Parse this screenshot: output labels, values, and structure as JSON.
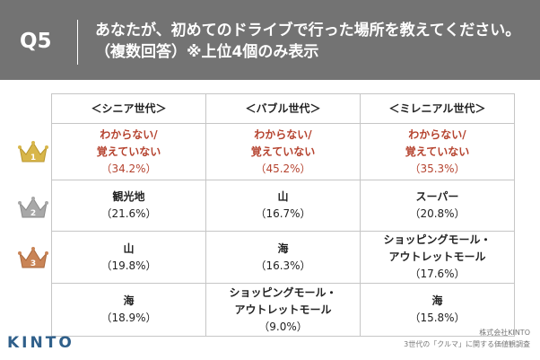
{
  "header": {
    "question_no": "Q5",
    "title_line1": "あなたが、初めてのドライブで行った場所を教えてください。",
    "title_line2": "（複数回答）※上位4個のみ表示"
  },
  "table": {
    "columns": [
      "＜シニア世代＞",
      "＜バブル世代＞",
      "＜ミレニアル世代＞"
    ],
    "rows": [
      {
        "rank": "1",
        "rank_icon": "gold-crown-icon",
        "cells": [
          {
            "name": "わからない/\n覚えていない",
            "pct": "（34.2%）"
          },
          {
            "name": "わからない/\n覚えていない",
            "pct": "（45.2%）"
          },
          {
            "name": "わからない/\n覚えていない",
            "pct": "（35.3%）"
          }
        ]
      },
      {
        "rank": "2",
        "rank_icon": "silver-crown-icon",
        "cells": [
          {
            "name": "観光地",
            "pct": "（21.6%）"
          },
          {
            "name": "山",
            "pct": "（16.7%）"
          },
          {
            "name": "スーパー",
            "pct": "（20.8%）"
          }
        ]
      },
      {
        "rank": "3",
        "rank_icon": "bronze-crown-icon",
        "cells": [
          {
            "name": "山",
            "pct": "（19.8%）"
          },
          {
            "name": "海",
            "pct": "（16.3%）"
          },
          {
            "name": "ショッピングモール・\nアウトレットモール",
            "pct": "（17.6%）"
          }
        ]
      },
      {
        "rank": "",
        "rank_icon": "",
        "cells": [
          {
            "name": "海",
            "pct": "（18.9%）"
          },
          {
            "name": "ショッピングモール・\nアウトレットモール",
            "pct": "（9.0%）"
          },
          {
            "name": "海",
            "pct": "（15.8%）"
          }
        ]
      }
    ]
  },
  "footer": {
    "credit_line1": "株式会社KINTO",
    "credit_line2": "3世代の「クルマ」に関する価値観調査",
    "logo": "KINTO"
  },
  "colors": {
    "header_bg": "#737373",
    "highlight_text": "#b5432f",
    "gold": "#d8b64a",
    "silver": "#a8a8a8",
    "bronze": "#c98456",
    "logo": "#2f5f8a"
  }
}
